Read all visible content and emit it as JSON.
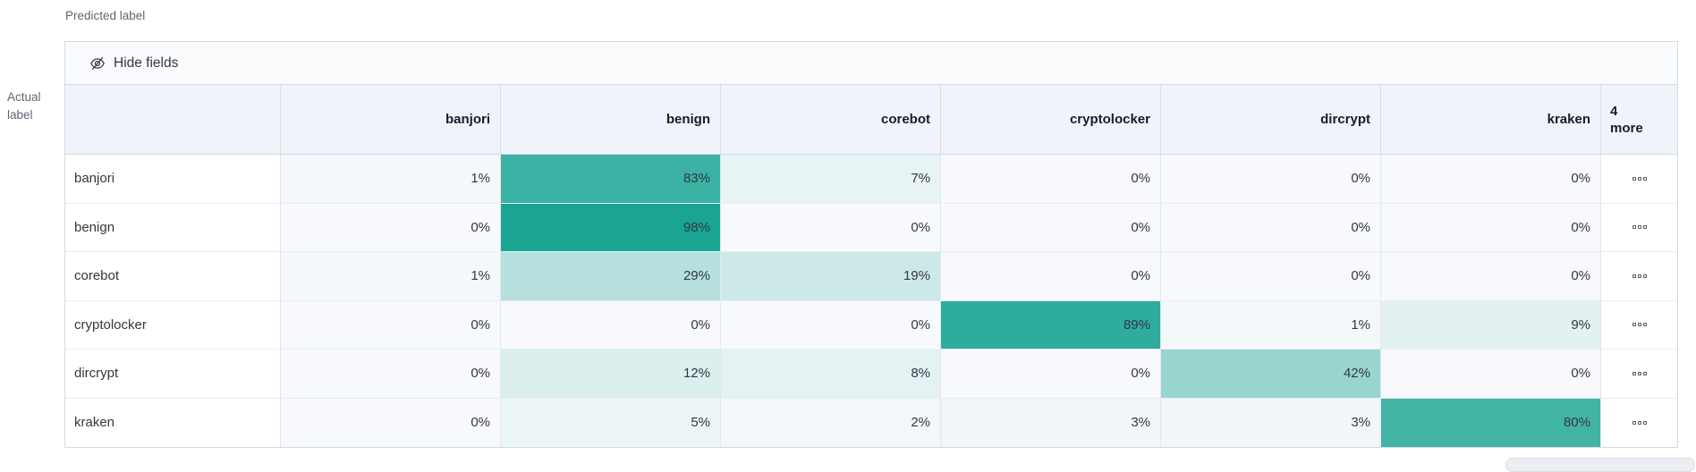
{
  "axis": {
    "predicted": "Predicted label",
    "actual_line1": "Actual",
    "actual_line2": "label"
  },
  "toolbar": {
    "hide_fields": "Hide fields"
  },
  "colors": {
    "heat_base": "#15a391",
    "cell_bg": "#f7f9fc",
    "header_bg": "#f0f3f9",
    "border": "#d3dae6"
  },
  "grid": {
    "columns": [
      "banjori",
      "benign",
      "corebot",
      "cryptolocker",
      "dircrypt",
      "kraken"
    ],
    "more_column": {
      "count": "4",
      "label": "more"
    },
    "rows": [
      {
        "label": "banjori",
        "values": [
          "1%",
          "83%",
          "7%",
          "0%",
          "0%",
          "0%"
        ]
      },
      {
        "label": "benign",
        "values": [
          "0%",
          "98%",
          "0%",
          "0%",
          "0%",
          "0%"
        ]
      },
      {
        "label": "corebot",
        "values": [
          "1%",
          "29%",
          "19%",
          "0%",
          "0%",
          "0%"
        ]
      },
      {
        "label": "cryptolocker",
        "values": [
          "0%",
          "0%",
          "0%",
          "89%",
          "1%",
          "9%"
        ]
      },
      {
        "label": "dircrypt",
        "values": [
          "0%",
          "12%",
          "8%",
          "0%",
          "42%",
          "0%"
        ]
      },
      {
        "label": "kraken",
        "values": [
          "0%",
          "5%",
          "2%",
          "3%",
          "3%",
          "80%"
        ]
      }
    ]
  },
  "chart_data": {
    "type": "heatmap",
    "xlabel": "Predicted label",
    "ylabel": "Actual label",
    "x_categories": [
      "banjori",
      "benign",
      "corebot",
      "cryptolocker",
      "dircrypt",
      "kraken"
    ],
    "y_categories": [
      "banjori",
      "benign",
      "corebot",
      "cryptolocker",
      "dircrypt",
      "kraken"
    ],
    "values_percent": [
      [
        1,
        83,
        7,
        0,
        0,
        0
      ],
      [
        0,
        98,
        0,
        0,
        0,
        0
      ],
      [
        1,
        29,
        19,
        0,
        0,
        0
      ],
      [
        0,
        0,
        0,
        89,
        1,
        9
      ],
      [
        0,
        12,
        8,
        0,
        42,
        0
      ],
      [
        0,
        5,
        2,
        3,
        3,
        80
      ]
    ],
    "extra_columns_indicator": "4 more",
    "legend": "none",
    "color_scale": {
      "low": "#f7f9fc",
      "high": "#15a391"
    }
  }
}
